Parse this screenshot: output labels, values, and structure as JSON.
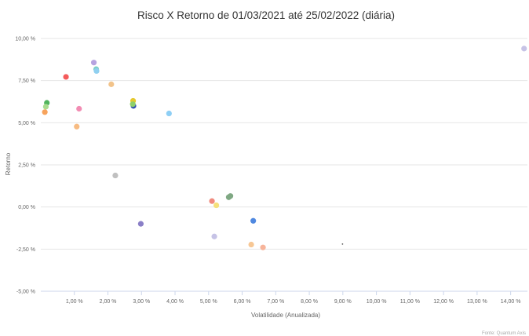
{
  "chart_data": {
    "type": "scatter",
    "title": "Risco X Retorno de 01/03/2021 até 25/02/2022 (diária)",
    "xlabel": "Volatilidade (Anualizada)",
    "ylabel": "Retorno",
    "source": "Fonte: Quantum Axis",
    "xlim": [
      0.0,
      14.5
    ],
    "ylim": [
      -5.0,
      10.0
    ],
    "grid": true,
    "x_ticks": [
      {
        "value": 1,
        "label": "1,00 %"
      },
      {
        "value": 2,
        "label": "2,00 %"
      },
      {
        "value": 3,
        "label": "3,00 %"
      },
      {
        "value": 4,
        "label": "4,00 %"
      },
      {
        "value": 5,
        "label": "5,00 %"
      },
      {
        "value": 6,
        "label": "6,00 %"
      },
      {
        "value": 7,
        "label": "7,00 %"
      },
      {
        "value": 8,
        "label": "8,00 %"
      },
      {
        "value": 9,
        "label": "9,00 %"
      },
      {
        "value": 10,
        "label": "10,00 %"
      },
      {
        "value": 11,
        "label": "11,00 %"
      },
      {
        "value": 12,
        "label": "12,00 %"
      },
      {
        "value": 13,
        "label": "13,00 %"
      },
      {
        "value": 14,
        "label": "14,00 %"
      }
    ],
    "y_ticks": [
      {
        "value": 10.0,
        "label": "10,00 %"
      },
      {
        "value": 7.5,
        "label": "7,50 %"
      },
      {
        "value": 5.0,
        "label": "5,00 %"
      },
      {
        "value": 2.5,
        "label": "2,50 %"
      },
      {
        "value": 0.0,
        "label": "0,00 %"
      },
      {
        "value": -2.5,
        "label": "-2,50 %"
      },
      {
        "value": -5.0,
        "label": "-5,00 %"
      }
    ],
    "points": [
      {
        "x": 0.75,
        "y": 7.72,
        "color": "#f45b5b"
      },
      {
        "x": 1.58,
        "y": 8.57,
        "color": "#b6a3e0"
      },
      {
        "x": 1.65,
        "y": 8.18,
        "color": "#7cd0c9"
      },
      {
        "x": 1.66,
        "y": 8.07,
        "color": "#90d0f0"
      },
      {
        "x": 2.1,
        "y": 7.28,
        "color": "#f2c38a"
      },
      {
        "x": 0.18,
        "y": 6.18,
        "color": "#50b35d"
      },
      {
        "x": 0.15,
        "y": 5.95,
        "color": "#a9dc8f"
      },
      {
        "x": 0.12,
        "y": 5.63,
        "color": "#f7a35c"
      },
      {
        "x": 1.14,
        "y": 5.83,
        "color": "#f28cb3"
      },
      {
        "x": 1.07,
        "y": 4.77,
        "color": "#f7bb82"
      },
      {
        "x": 2.75,
        "y": 6.3,
        "color": "#e5c82e"
      },
      {
        "x": 2.76,
        "y": 6.0,
        "color": "#2f4fb5"
      },
      {
        "x": 2.74,
        "y": 6.1,
        "color": "#8fd06a"
      },
      {
        "x": 3.82,
        "y": 5.55,
        "color": "#8ecff5"
      },
      {
        "x": 2.22,
        "y": 1.87,
        "color": "#c0c0c0"
      },
      {
        "x": 2.98,
        "y": -1.0,
        "color": "#8a7fc7"
      },
      {
        "x": 5.1,
        "y": 0.35,
        "color": "#f08a7e"
      },
      {
        "x": 5.23,
        "y": 0.1,
        "color": "#f5e07a"
      },
      {
        "x": 5.6,
        "y": 0.58,
        "color": "#7fa883"
      },
      {
        "x": 5.65,
        "y": 0.65,
        "color": "#7fa883"
      },
      {
        "x": 5.17,
        "y": -1.75,
        "color": "#c6c3e6"
      },
      {
        "x": 6.33,
        "y": -0.82,
        "color": "#4f88e0"
      },
      {
        "x": 6.27,
        "y": -2.23,
        "color": "#f7c794"
      },
      {
        "x": 6.62,
        "y": -2.4,
        "color": "#f7b49a"
      },
      {
        "x": 14.4,
        "y": 9.4,
        "color": "#c6c3e6"
      }
    ],
    "marker": {
      "x": 8.99,
      "y": -2.2,
      "color": "#555555"
    }
  }
}
